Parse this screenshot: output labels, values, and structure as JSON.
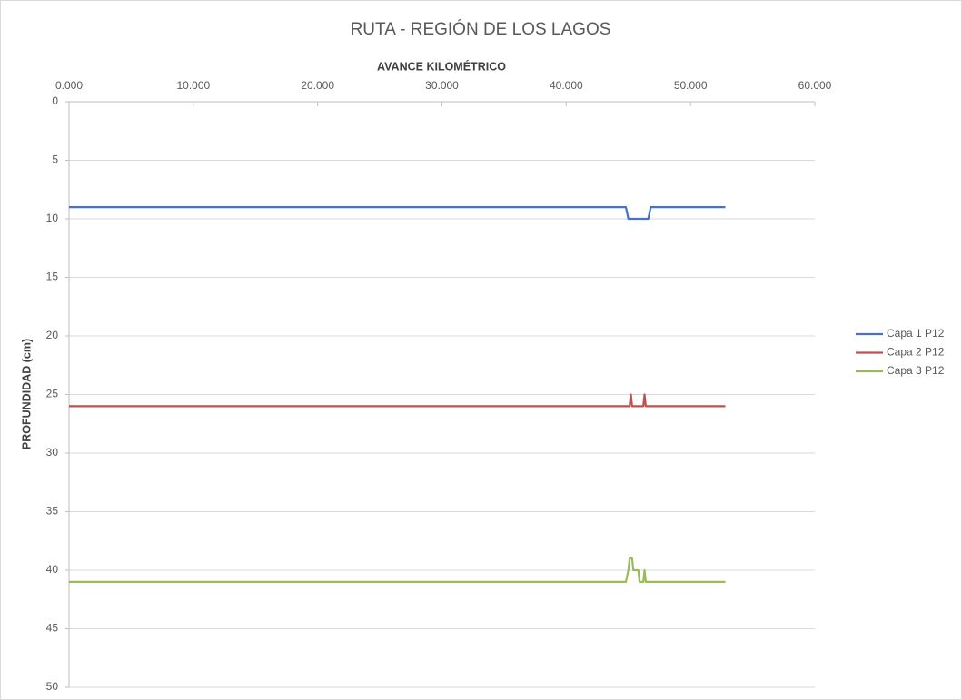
{
  "chart_data": {
    "type": "line",
    "title": "RUTA - REGIÓN DE LOS LAGOS",
    "x_label": "AVANCE KILOMÉTRICO",
    "y_label": "PROFUNDIDAD (cm)",
    "x": [
      0,
      44.8,
      45.0,
      45.1,
      45.2,
      45.3,
      45.4,
      45.5,
      45.8,
      45.9,
      46.2,
      46.3,
      46.4,
      46.6,
      46.8,
      52.8
    ],
    "series": [
      {
        "name": "Capa 1 P12",
        "color": "#4472c4",
        "values": [
          9,
          9,
          10,
          10,
          10,
          10,
          10,
          10,
          10,
          10,
          10,
          10,
          10,
          10,
          9,
          9
        ]
      },
      {
        "name": "Capa 2 P12",
        "color": "#c0504d",
        "values": [
          26,
          26,
          26,
          26,
          25,
          26,
          26,
          26,
          26,
          26,
          26,
          25,
          26,
          26,
          26,
          26
        ]
      },
      {
        "name": "Capa 3 P12",
        "color": "#9bbb59",
        "values": [
          41,
          41,
          40,
          39,
          39,
          39,
          40,
          40,
          40,
          41,
          41,
          40,
          41,
          41,
          41,
          41
        ]
      }
    ],
    "xlim": [
      0,
      60
    ],
    "xticks": [
      {
        "value": 0,
        "label": "0.000"
      },
      {
        "value": 10,
        "label": "10.000"
      },
      {
        "value": 20,
        "label": "20.000"
      },
      {
        "value": 30,
        "label": "30.000"
      },
      {
        "value": 40,
        "label": "40.000"
      },
      {
        "value": 50,
        "label": "50.000"
      },
      {
        "value": 60,
        "label": "60.000"
      }
    ],
    "ylim": [
      0,
      50
    ],
    "yticks": [
      0,
      5,
      10,
      15,
      20,
      25,
      30,
      35,
      40,
      45,
      50
    ],
    "y_inverted": true,
    "x_axis_position": "top",
    "grid": true,
    "legend": "right"
  }
}
